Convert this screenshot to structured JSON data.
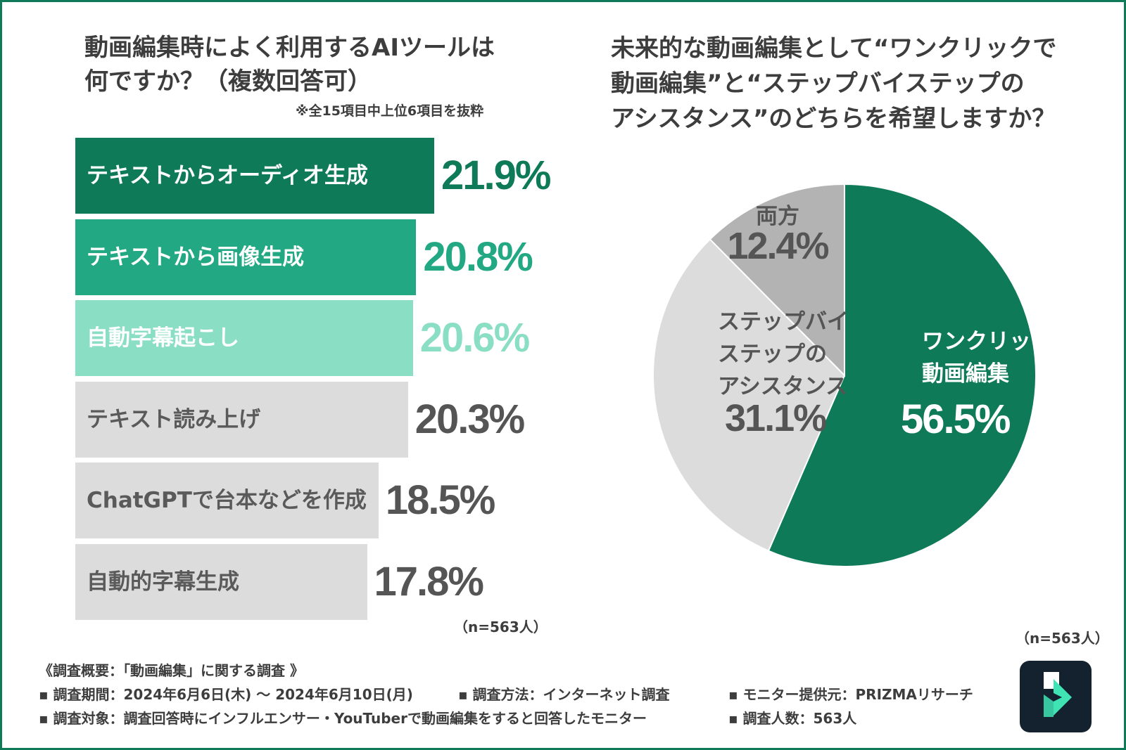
{
  "left_chart": {
    "title_line1": "動画編集時によく利用するAIツールは",
    "title_line2": "何ですか？（複数回答可）",
    "note": "※全15項目中上位6項目を抜粋",
    "sample": "（n=563人）"
  },
  "right_chart": {
    "title_line1": "未来的な動画編集として“ワンクリックで",
    "title_line2": "動画編集”と“ステップバイステップの",
    "title_line3": "アシスタンス”のどちらを希望しますか？",
    "sample": "（n=563人）"
  },
  "chart_data": [
    {
      "type": "bar",
      "orientation": "horizontal",
      "title": "動画編集時によく利用するAIツールは何ですか？（複数回答可）",
      "categories": [
        "テキストからオーディオ生成",
        "テキストから画像生成",
        "自動字幕起こし",
        "テキスト読み上げ",
        "ChatGPTで台本などを作成",
        "自動的字幕生成"
      ],
      "values": [
        21.9,
        20.8,
        20.6,
        20.3,
        18.5,
        17.8
      ],
      "labels": [
        "21.9%",
        "20.8%",
        "20.6%",
        "20.3%",
        "18.5%",
        "17.8%"
      ],
      "bar_colors": [
        "#0e7a57",
        "#22a882",
        "#8adec4",
        "#dcdcdc",
        "#dcdcdc",
        "#dcdcdc"
      ],
      "label_colors": [
        "#ffffff",
        "#ffffff",
        "#ffffff",
        "#5a5a5a",
        "#5a5a5a",
        "#5a5a5a"
      ],
      "value_colors": [
        "#0e7a57",
        "#22a882",
        "#8adec4",
        "#555555",
        "#555555",
        "#555555"
      ],
      "unit": "%"
    },
    {
      "type": "pie",
      "title": "未来的な動画編集として“ワンクリックで動画編集”と“ステップバイステップのアシスタンス”のどちらを希望しますか？",
      "slices": [
        {
          "label_lines": [
            "ワンクリックで",
            "動画編集"
          ],
          "value": 56.5,
          "value_label": "56.5%",
          "color": "#0e7a57",
          "text_color": "#ffffff"
        },
        {
          "label_lines": [
            "ステップバイ",
            "ステップの",
            "アシスタンス"
          ],
          "value": 31.1,
          "value_label": "31.1%",
          "color": "#dcdcdc",
          "text_color": "#555555"
        },
        {
          "label_lines": [
            "両方"
          ],
          "value": 12.4,
          "value_label": "12.4%",
          "color": "#b3b3b3",
          "text_color": "#555555"
        }
      ]
    }
  ],
  "footer": {
    "heading": "《調査概要：「動画編集」に関する調査 》",
    "period": "▪ 調査期間：2024年6月6日(木) 〜 2024年6月10日(月)",
    "method": "▪ 調査方法：インターネット調査",
    "provider": "▪ モニター提供元：PRIZMAリサーチ",
    "target": "▪ 調査対象：調査回答時にインフルエンサー・YouTuberで動画編集をすると回答したモニター",
    "count": "▪ 調査人数：563人"
  },
  "logo": {
    "icon": "filmora-logo-icon",
    "bg_color": "#13222e",
    "accent": "#3fe3b4"
  }
}
